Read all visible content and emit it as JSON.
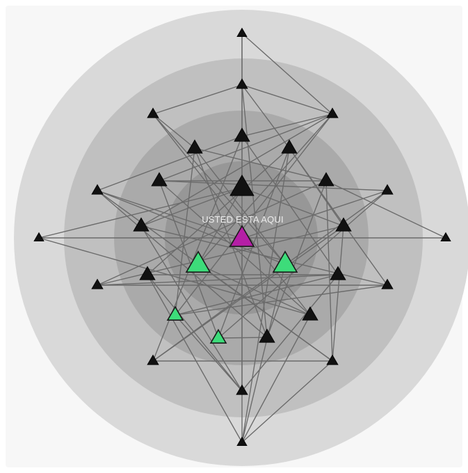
{
  "label": {
    "text": "USTED ESTA AQUI"
  },
  "colors": {
    "ring_1": "#d9d9d9",
    "ring_2": "#c0c0c0",
    "ring_3": "#aaaaaa",
    "ring_4": "#979797",
    "edge": "#6b6b6b",
    "node_default": "#111111",
    "node_highlight": "#3ddc7a",
    "node_self": "#b51fa6"
  },
  "legend_semantics": {
    "node_self": "you-are-here",
    "node_highlight": "highlighted-contact",
    "node_default": "contact"
  }
}
